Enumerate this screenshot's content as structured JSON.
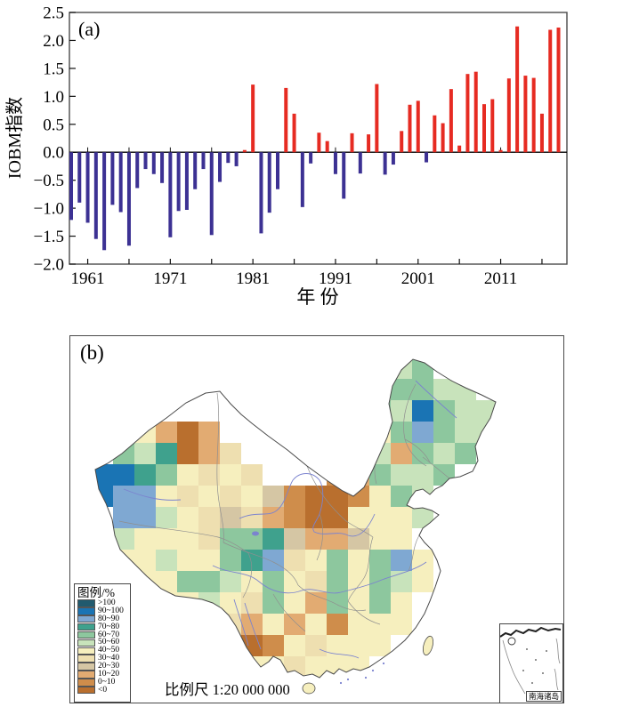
{
  "panel_a": {
    "label": "(a)",
    "ylabel": "IOBM指数",
    "xlabel": "年  份",
    "ytick_labels": [
      "2.5",
      "2.0",
      "1.5",
      "1.0",
      "0.5",
      "0.0",
      "−0.5",
      "−1.0",
      "−1.5",
      "−2.0"
    ],
    "xtick_labels": [
      "1961",
      "1971",
      "1981",
      "1991",
      "2001",
      "2011"
    ]
  },
  "chart_data": {
    "type": "bar",
    "title": "IOBM index time series",
    "xlabel": "年  份",
    "ylabel": "IOBM指数",
    "ylim": [
      -2.0,
      2.5
    ],
    "ytick_step": 0.5,
    "grid": false,
    "x": [
      1959,
      1960,
      1961,
      1962,
      1963,
      1964,
      1965,
      1966,
      1967,
      1968,
      1969,
      1970,
      1971,
      1972,
      1973,
      1974,
      1975,
      1976,
      1977,
      1978,
      1979,
      1980,
      1981,
      1982,
      1983,
      1984,
      1985,
      1986,
      1987,
      1988,
      1989,
      1990,
      1991,
      1992,
      1993,
      1994,
      1995,
      1996,
      1997,
      1998,
      1999,
      2000,
      2001,
      2002,
      2003,
      2004,
      2005,
      2006,
      2007,
      2008,
      2009,
      2010,
      2011,
      2012,
      2013,
      2014,
      2015,
      2016,
      2017,
      2018
    ],
    "values": [
      -1.21,
      -0.9,
      -1.26,
      -1.55,
      -1.75,
      -0.94,
      -1.07,
      -1.67,
      -0.64,
      -0.3,
      -0.39,
      -0.55,
      -1.52,
      -1.05,
      -1.03,
      -0.66,
      -0.3,
      -1.48,
      -0.53,
      -0.19,
      -0.25,
      0.04,
      1.21,
      -1.45,
      -1.08,
      -0.66,
      1.15,
      0.69,
      -0.98,
      -0.2,
      0.35,
      0.2,
      -0.39,
      -0.83,
      0.34,
      -0.38,
      0.32,
      1.22,
      -0.4,
      -0.22,
      0.38,
      0.85,
      0.92,
      -0.18,
      0.66,
      0.52,
      1.13,
      0.12,
      1.4,
      1.44,
      0.86,
      0.95,
      0.04,
      1.32,
      2.25,
      1.37,
      1.33,
      0.69,
      2.19,
      2.23
    ],
    "xticks_labeled": [
      1961,
      1971,
      1981,
      1991,
      2001,
      2011
    ],
    "xticks_minor_step": 5,
    "positive_color": "#e62b22",
    "negative_color": "#3c3193"
  },
  "panel_b": {
    "label": "(b)",
    "scale_text": "比例尺  1:20 000 000",
    "inset_label": "南海诸岛",
    "legend": {
      "title": "图例/%",
      "items": [
        {
          "label": ">100",
          "color": "#215a6e"
        },
        {
          "label": "90~100",
          "color": "#1a74b4"
        },
        {
          "label": "80~90",
          "color": "#7fa8d2"
        },
        {
          "label": "70~80",
          "color": "#3fa18d"
        },
        {
          "label": "60~70",
          "color": "#8dc79e"
        },
        {
          "label": "50~60",
          "color": "#c8e3bb"
        },
        {
          "label": "40~50",
          "color": "#f6efbe"
        },
        {
          "label": "30~40",
          "color": "#eedfb0"
        },
        {
          "label": "20~30",
          "color": "#d5c6a4"
        },
        {
          "label": "10~20",
          "color": "#e2ab72"
        },
        {
          "label": "0~10",
          "color": "#cf8d4b"
        },
        {
          "label": "<0",
          "color": "#b96f2e"
        }
      ]
    },
    "map_data": {
      "type": "heatmap",
      "region": "China",
      "unit": "%",
      "class_codes": "abcdefghijkl",
      "cell_size": 24,
      "grid_origin": [
        24,
        24
      ],
      "grid": [
        "..............fe....",
        ".............feeff..",
        "............fefbeff.",
        "..gjlj.....fegeceff.",
        ".efdljh....jefjefe..",
        "bbdeghgh...kjeffe...",
        "bccghghgikllkgef....",
        ".ccfghihjkllgggf....",
        ".fgggheedijjigg.....",
        ".ggfggedchgegecg....",
        "..ggeefgeghegefg....",
        "...ggfghegjegeg.....",
        ".....ghjgjgkggg.....",
        "......glkghggg......",
        ".......gghggg.......",
        "...................."
      ]
    }
  }
}
